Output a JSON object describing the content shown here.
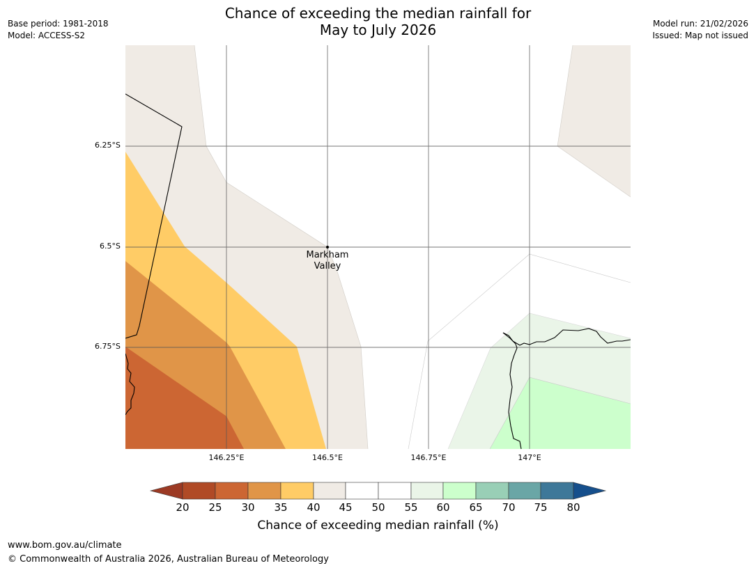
{
  "title": {
    "line1": "Chance of exceeding the median rainfall for",
    "line2": "May to July 2026"
  },
  "meta_left": {
    "base_period": "Base period: 1981-2018",
    "model": "Model: ACCESS-S2"
  },
  "meta_right": {
    "model_run": "Model run: 21/02/2026",
    "issued": "Issued: Map not issued"
  },
  "map": {
    "lat_labels": [
      "6.25°S",
      "6.5°S",
      "6.75°S"
    ],
    "lon_labels": [
      "146.25°E",
      "146.5°E",
      "146.75°E",
      "147°E"
    ],
    "place": {
      "line1": "Markham",
      "line2": "Valley"
    }
  },
  "colorbar": {
    "ticks": [
      "20",
      "25",
      "30",
      "35",
      "40",
      "45",
      "50",
      "55",
      "60",
      "65",
      "70",
      "75",
      "80"
    ],
    "colors": {
      "below_20": "#9c3a24",
      "20_25": "#b04a26",
      "25_30": "#cc6633",
      "30_35": "#e09548",
      "35_40": "#ffcc66",
      "40_45": "#f0ebe5",
      "45_50": "#ffffff",
      "50_55": "#ffffff",
      "55_60": "#eaf5e8",
      "60_65": "#ccffcc",
      "65_70": "#99cfb6",
      "70_75": "#6aa6a6",
      "75_80": "#3e7899",
      "above_80": "#164f8c"
    },
    "label": "Chance of exceeding median rainfall (%)"
  },
  "footer": {
    "url": "www.bom.gov.au/climate",
    "copyright": "© Commonwealth of Australia 2026, Australian Bureau of Meteorology"
  }
}
